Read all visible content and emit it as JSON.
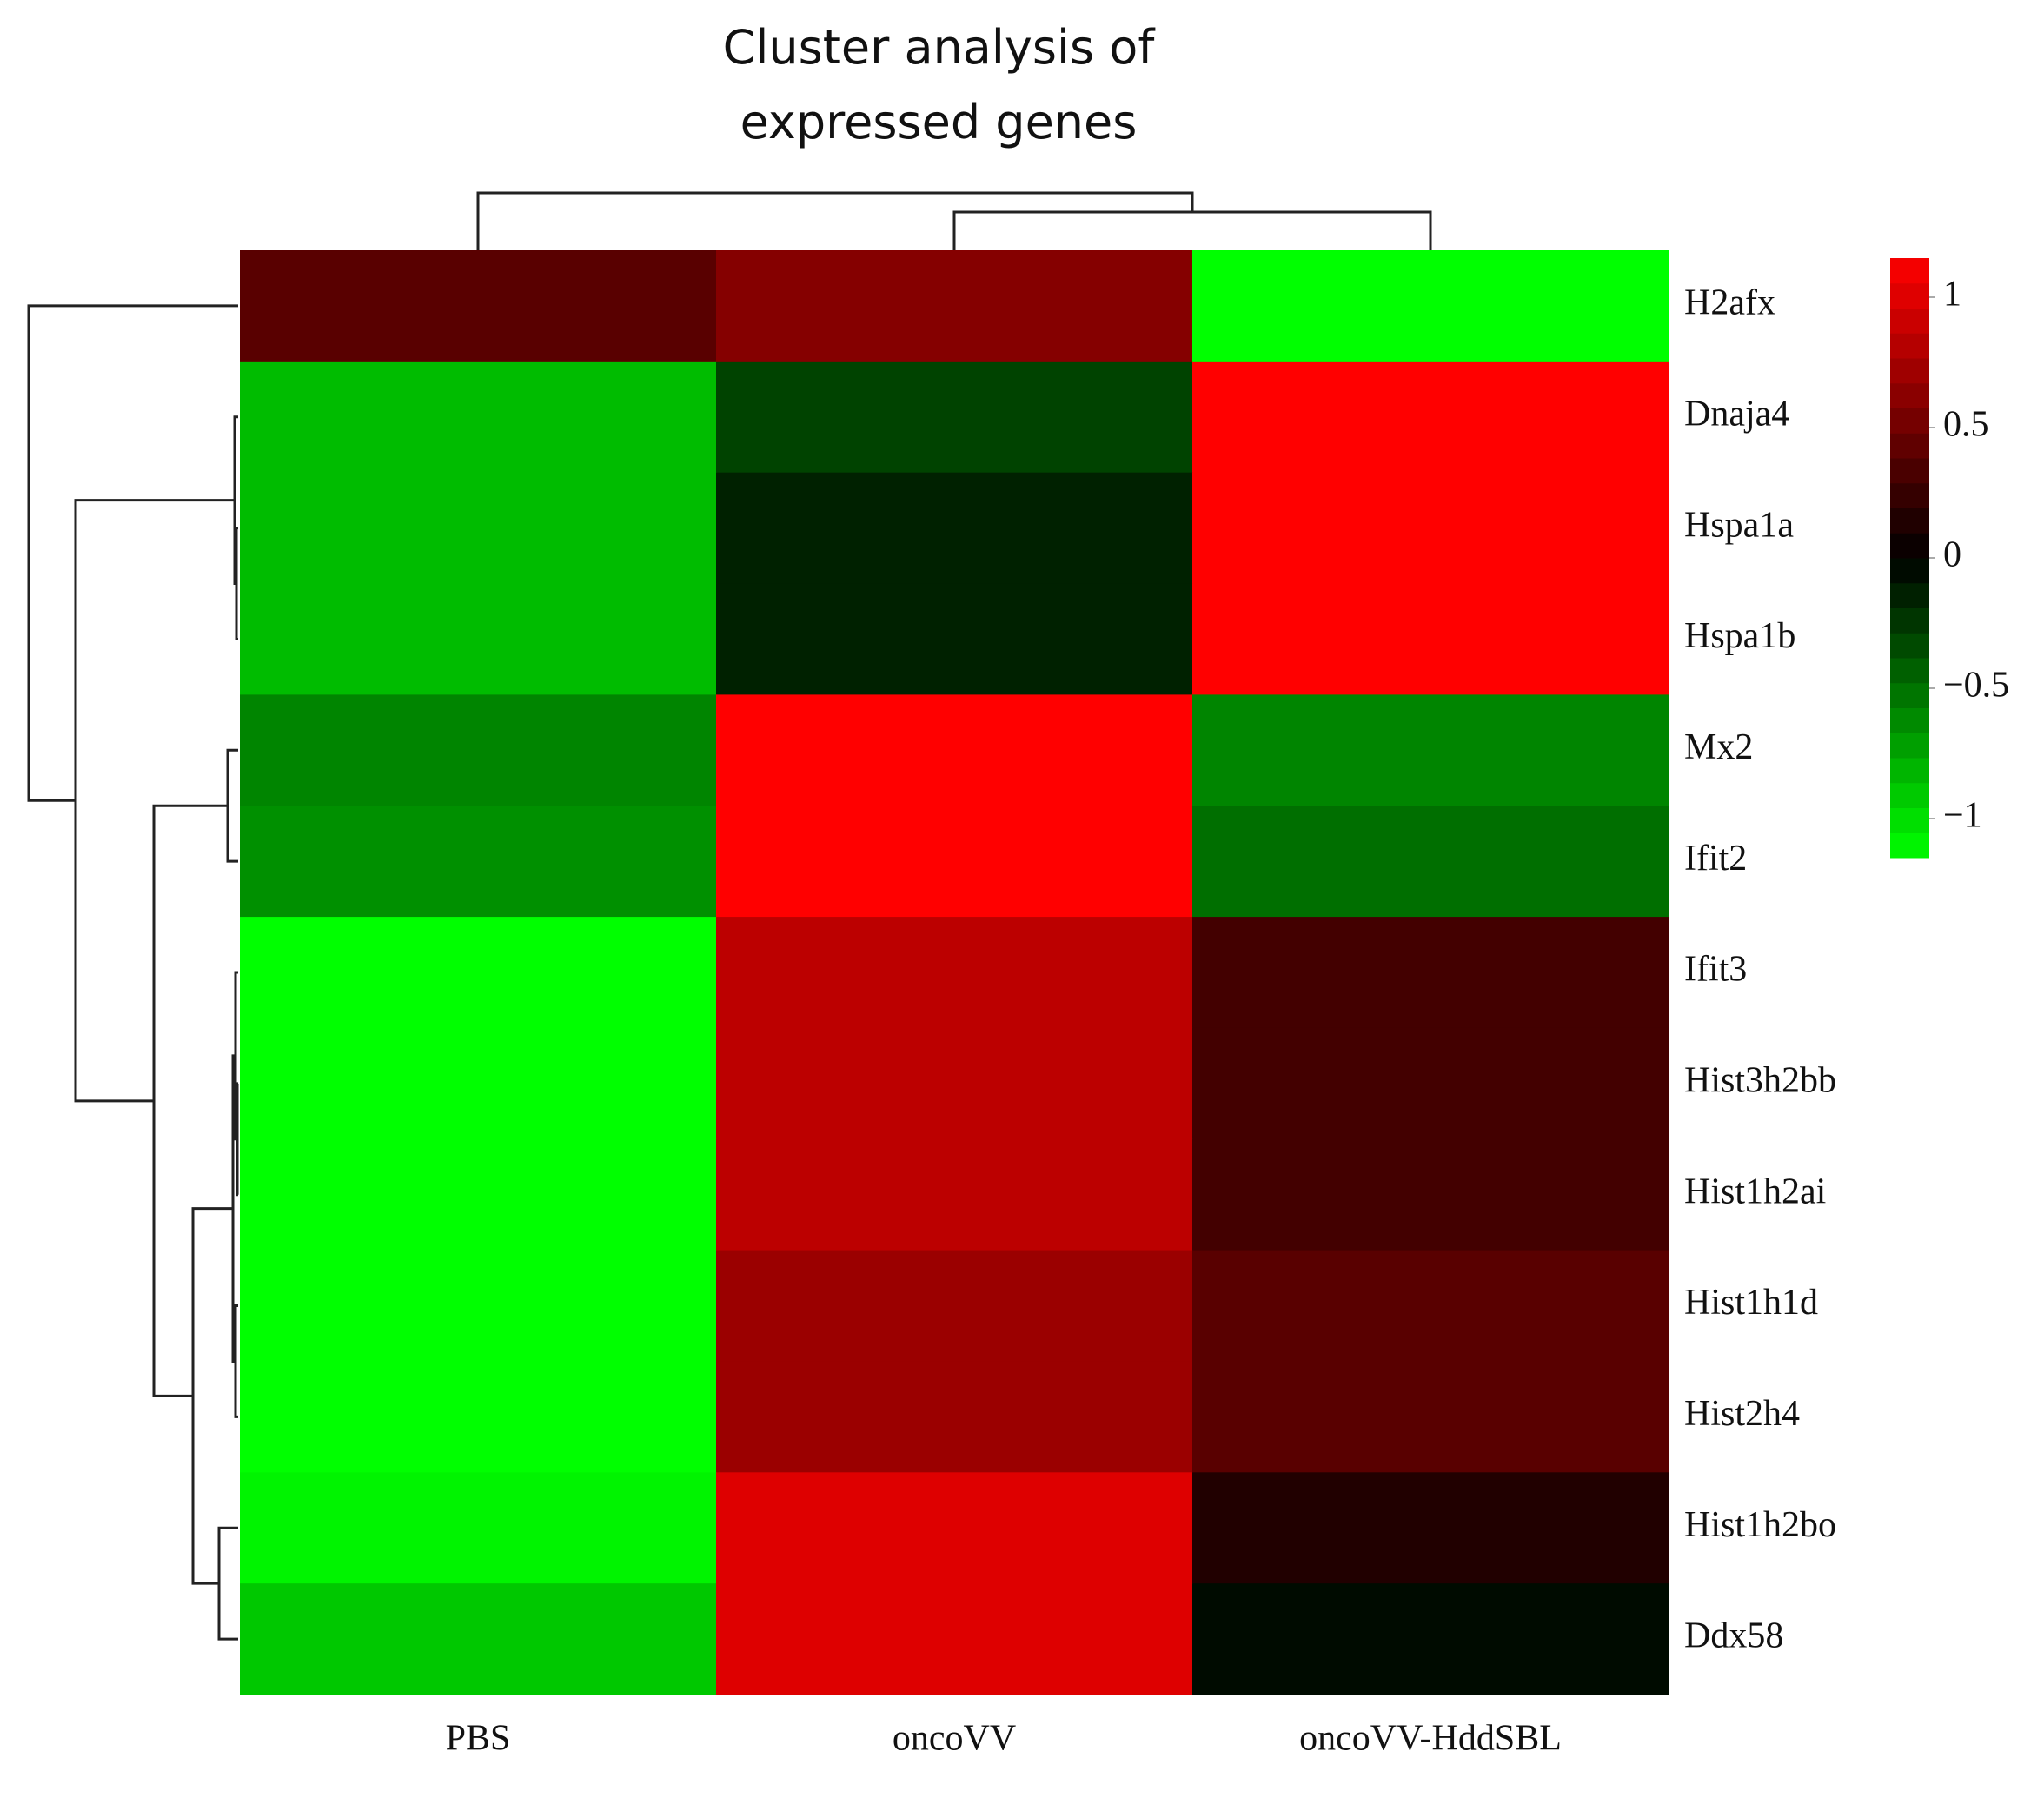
{
  "chart_data": {
    "type": "heatmap",
    "title": "Cluster analysis of expressed genes",
    "columns": [
      "PBS",
      "oncoVV",
      "oncoVV-HddSBL"
    ],
    "rows": [
      "H2afx",
      "Dnaja4",
      "Hspa1a",
      "Hspa1b",
      "Mx2",
      "Ifit2",
      "Ifit3",
      "Hist3h2bb",
      "Hist1h2ai",
      "Hist1h1d",
      "Hist2h4",
      "Hist1h2bo",
      "Ddx58"
    ],
    "values": [
      [
        0.4,
        0.6,
        -1.15
      ],
      [
        -0.85,
        -0.3,
        1.15
      ],
      [
        -0.85,
        -0.15,
        1.15
      ],
      [
        -0.85,
        -0.15,
        1.15
      ],
      [
        -0.6,
        1.15,
        -0.6
      ],
      [
        -0.65,
        1.15,
        -0.5
      ],
      [
        -1.15,
        0.85,
        0.3
      ],
      [
        -1.15,
        0.85,
        0.3
      ],
      [
        -1.15,
        0.85,
        0.3
      ],
      [
        -1.15,
        0.7,
        0.4
      ],
      [
        -1.15,
        0.7,
        0.4
      ],
      [
        -1.1,
        1.0,
        0.15
      ],
      [
        -0.9,
        1.0,
        -0.05
      ]
    ],
    "zlim": [
      -1.15,
      1.15
    ],
    "zticks": [
      {
        "value": -1,
        "label": "−1"
      },
      {
        "value": -0.5,
        "label": "−0.5"
      },
      0,
      0.5,
      1
    ],
    "colors": [
      "#00ff00",
      "#000000",
      "#ff0000"
    ]
  }
}
